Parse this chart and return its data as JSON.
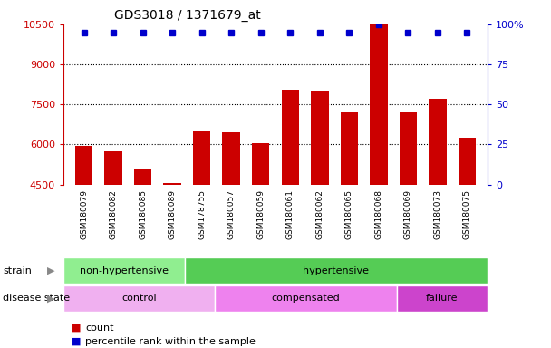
{
  "title": "GDS3018 / 1371679_at",
  "samples": [
    "GSM180079",
    "GSM180082",
    "GSM180085",
    "GSM180089",
    "GSM178755",
    "GSM180057",
    "GSM180059",
    "GSM180061",
    "GSM180062",
    "GSM180065",
    "GSM180068",
    "GSM180069",
    "GSM180073",
    "GSM180075"
  ],
  "counts": [
    5950,
    5750,
    5100,
    4550,
    6500,
    6450,
    6050,
    8050,
    8000,
    7200,
    10500,
    7200,
    7700,
    6250
  ],
  "percentile_ranks": [
    95,
    95,
    95,
    95,
    95,
    95,
    95,
    95,
    95,
    95,
    100,
    95,
    95,
    95
  ],
  "ylim_left": [
    4500,
    10500
  ],
  "ylim_right": [
    0,
    100
  ],
  "yticks_left": [
    4500,
    6000,
    7500,
    9000,
    10500
  ],
  "yticks_right": [
    0,
    25,
    50,
    75,
    100
  ],
  "right_tick_labels": [
    "0",
    "25",
    "50",
    "75",
    "100%"
  ],
  "grid_lines": [
    6000,
    7500,
    9000
  ],
  "strain_groups": [
    {
      "label": "non-hypertensive",
      "start": 0,
      "end": 4,
      "color": "#90EE90"
    },
    {
      "label": "hypertensive",
      "start": 4,
      "end": 14,
      "color": "#55CC55"
    }
  ],
  "disease_groups": [
    {
      "label": "control",
      "start": 0,
      "end": 5,
      "color": "#F0B0F0"
    },
    {
      "label": "compensated",
      "start": 5,
      "end": 11,
      "color": "#EE82EE"
    },
    {
      "label": "failure",
      "start": 11,
      "end": 14,
      "color": "#CC44CC"
    }
  ],
  "bar_color": "#CC0000",
  "dot_color": "#0000CC",
  "left_axis_color": "#CC0000",
  "right_axis_color": "#0000CC",
  "xlabels_bg_color": "#C8C8C8",
  "strain_label": "strain",
  "disease_label": "disease state",
  "legend_count": "count",
  "legend_rank": "percentile rank within the sample",
  "legend_count_color": "#CC0000",
  "legend_rank_color": "#0000CC"
}
